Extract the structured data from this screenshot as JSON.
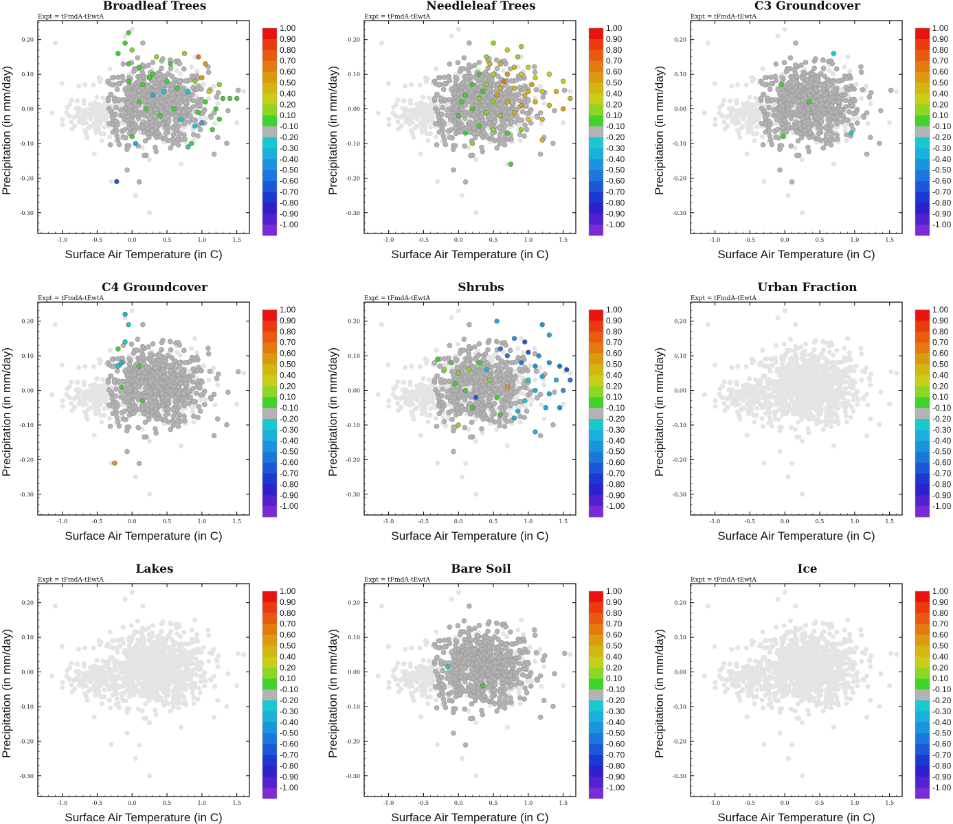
{
  "figure": {
    "expt_label": "Expt = tFmdA-tEwtA",
    "xlabel": "Surface Air Temperature (in C)",
    "ylabel": "Precipitation (in mm/day)"
  },
  "colorbar": {
    "labels": [
      "1.00",
      "0.90",
      "0.80",
      "0.70",
      "0.60",
      "0.50",
      "0.40",
      "0.20",
      "0.10",
      "-0.10",
      "-0.20",
      "-0.30",
      "-0.40",
      "-0.50",
      "-0.60",
      "-0.70",
      "-0.80",
      "-0.90",
      "-1.00"
    ],
    "colors": [
      "#e8130f",
      "#ea3a10",
      "#e85a10",
      "#e27a10",
      "#db9a10",
      "#d2b612",
      "#c9cf18",
      "#8ed625",
      "#3fd32b",
      "#b3b3b3",
      "#18c9d0",
      "#1bb0dc",
      "#1b94de",
      "#1b77dc",
      "#1a58d7",
      "#1b39d0",
      "#2f20cc",
      "#5221d0",
      "#7b2bd6"
    ]
  },
  "chart_data": [
    {
      "type": "scatter",
      "title": "Broadleaf Trees",
      "xlim": [
        -1.35,
        1.68
      ],
      "ylim": [
        -0.36,
        0.255
      ],
      "xticks": [
        -1.0,
        -0.5,
        0.0,
        0.5,
        1.0,
        1.5
      ],
      "xtick_labels": [
        "-1.0",
        "-0.5",
        "0.0",
        "0.5",
        "1.0",
        "1.5"
      ],
      "yticks": [
        0.2,
        0.1,
        0.0,
        -0.1,
        -0.2,
        -0.3
      ],
      "ytick_labels": [
        "0.20",
        "0.10",
        "0.00",
        "-0.10",
        "-0.20",
        "-0.30"
      ],
      "points": [
        [
          -0.05,
          0.22,
          0.15
        ],
        [
          -0.1,
          0.19,
          0.15
        ],
        [
          -0.2,
          0.16,
          0.15
        ],
        [
          0.0,
          0.17,
          0.2
        ],
        [
          -0.05,
          0.13,
          0.15
        ],
        [
          0.1,
          0.12,
          0.15
        ],
        [
          0.25,
          0.09,
          0.15
        ],
        [
          0.35,
          0.15,
          0.2
        ],
        [
          0.5,
          0.08,
          0.15
        ],
        [
          0.55,
          0.13,
          0.15
        ],
        [
          0.75,
          0.16,
          0.2
        ],
        [
          0.95,
          0.15,
          0.7
        ],
        [
          1.05,
          0.13,
          0.6
        ],
        [
          1.0,
          0.09,
          0.6
        ],
        [
          1.1,
          0.05,
          0.4
        ],
        [
          1.05,
          0.02,
          0.15
        ],
        [
          0.95,
          -0.01,
          0.15
        ],
        [
          1.2,
          0.0,
          0.15
        ],
        [
          1.3,
          0.03,
          0.15
        ],
        [
          1.25,
          -0.03,
          0.15
        ],
        [
          1.4,
          0.03,
          0.15
        ],
        [
          1.5,
          0.03,
          0.15
        ],
        [
          0.9,
          0.08,
          0.2
        ],
        [
          0.8,
          0.05,
          -0.25
        ],
        [
          0.6,
          0.0,
          0.15
        ],
        [
          0.45,
          0.05,
          -0.25
        ],
        [
          0.3,
          0.04,
          -0.3
        ],
        [
          0.2,
          0.0,
          0.15
        ],
        [
          0.1,
          0.02,
          0.15
        ],
        [
          -0.05,
          0.08,
          0.15
        ],
        [
          0.0,
          -0.08,
          0.15
        ],
        [
          0.05,
          -0.1,
          -0.3
        ],
        [
          0.9,
          -0.05,
          -0.25
        ],
        [
          0.85,
          -0.1,
          0.15
        ],
        [
          0.8,
          -0.11,
          -0.25
        ],
        [
          1.15,
          -0.06,
          0.15
        ],
        [
          1.0,
          -0.04,
          -0.3
        ],
        [
          0.7,
          -0.03,
          -0.2
        ],
        [
          -0.22,
          -0.21,
          -0.6
        ],
        [
          0.3,
          0.1,
          0.15
        ],
        [
          0.15,
          0.07,
          0.15
        ],
        [
          0.65,
          0.06,
          0.15
        ],
        [
          1.25,
          0.07,
          0.2
        ],
        [
          0.4,
          -0.02,
          0.15
        ]
      ]
    },
    {
      "type": "scatter",
      "title": "Needleleaf Trees",
      "xlim": [
        -1.35,
        1.68
      ],
      "ylim": [
        -0.36,
        0.255
      ],
      "xticks": [
        -1.0,
        -0.5,
        0.0,
        0.5,
        1.0,
        1.5
      ],
      "xtick_labels": [
        "-1.0",
        "-0.5",
        "0.0",
        "0.5",
        "1.0",
        "1.5"
      ],
      "yticks": [
        0.2,
        0.1,
        0.0,
        -0.1,
        -0.2,
        -0.3
      ],
      "ytick_labels": [
        "0.20",
        "0.10",
        "0.00",
        "-0.10",
        "-0.20",
        "-0.30"
      ],
      "points": [
        [
          0.5,
          0.19,
          0.3
        ],
        [
          0.7,
          0.17,
          0.4
        ],
        [
          0.9,
          0.18,
          0.3
        ],
        [
          0.4,
          0.15,
          0.2
        ],
        [
          0.6,
          0.13,
          0.45
        ],
        [
          0.8,
          0.12,
          0.5
        ],
        [
          1.0,
          0.12,
          0.4
        ],
        [
          0.3,
          0.1,
          0.15
        ],
        [
          0.5,
          0.1,
          0.4
        ],
        [
          0.7,
          0.1,
          0.6
        ],
        [
          0.9,
          0.1,
          0.4
        ],
        [
          1.1,
          0.09,
          0.4
        ],
        [
          1.3,
          0.1,
          0.4
        ],
        [
          1.5,
          0.08,
          0.4
        ],
        [
          0.2,
          0.07,
          0.15
        ],
        [
          0.4,
          0.07,
          0.3
        ],
        [
          0.6,
          0.06,
          0.5
        ],
        [
          0.8,
          0.06,
          0.5
        ],
        [
          1.0,
          0.05,
          0.45
        ],
        [
          1.2,
          0.05,
          0.4
        ],
        [
          1.4,
          0.05,
          0.45
        ],
        [
          1.6,
          0.03,
          0.5
        ],
        [
          0.1,
          0.04,
          0.15
        ],
        [
          0.3,
          0.03,
          0.2
        ],
        [
          0.5,
          0.02,
          0.3
        ],
        [
          0.7,
          0.02,
          0.5
        ],
        [
          0.9,
          0.01,
          0.6
        ],
        [
          1.1,
          0.02,
          0.45
        ],
        [
          1.3,
          0.01,
          0.5
        ],
        [
          1.5,
          0.0,
          0.55
        ],
        [
          0.2,
          0.0,
          0.15
        ],
        [
          0.4,
          -0.01,
          0.2
        ],
        [
          0.6,
          -0.02,
          0.3
        ],
        [
          0.8,
          -0.01,
          0.5
        ],
        [
          1.0,
          -0.03,
          0.4
        ],
        [
          1.2,
          -0.03,
          0.5
        ],
        [
          0.3,
          -0.05,
          0.15
        ],
        [
          0.5,
          -0.06,
          0.2
        ],
        [
          0.7,
          -0.07,
          0.15
        ],
        [
          0.9,
          -0.06,
          0.3
        ],
        [
          1.2,
          -0.09,
          0.5
        ],
        [
          0.1,
          -0.07,
          0.15
        ],
        [
          0.2,
          -0.1,
          0.2
        ],
        [
          0.75,
          -0.16,
          0.15
        ],
        [
          0.0,
          -0.02,
          0.15
        ],
        [
          0.05,
          0.02,
          0.15
        ],
        [
          0.45,
          0.13,
          0.45
        ],
        [
          0.85,
          0.15,
          0.35
        ],
        [
          0.65,
          0.08,
          0.7
        ],
        [
          1.05,
          0.07,
          0.55
        ],
        [
          0.35,
          0.05,
          0.15
        ],
        [
          0.55,
          0.04,
          0.6
        ],
        [
          0.95,
          0.04,
          0.5
        ]
      ]
    },
    {
      "type": "scatter",
      "title": "C3 Groundcover",
      "xlim": [
        -1.35,
        1.68
      ],
      "ylim": [
        -0.36,
        0.255
      ],
      "xticks": [
        -1.0,
        -0.5,
        0.0,
        0.5,
        1.0,
        1.5
      ],
      "xtick_labels": [
        "-1.0",
        "-0.5",
        "0.0",
        "0.5",
        "1.0",
        "1.5"
      ],
      "yticks": [
        0.2,
        0.1,
        0.0,
        -0.1,
        -0.2,
        -0.3
      ],
      "ytick_labels": [
        "0.20",
        "0.10",
        "0.00",
        "-0.10",
        "-0.20",
        "-0.30"
      ],
      "points": [
        [
          -0.05,
          0.07,
          0.15
        ],
        [
          0.35,
          0.02,
          0.15
        ],
        [
          0.7,
          0.16,
          -0.2
        ],
        [
          0.95,
          -0.07,
          -0.2
        ],
        [
          -0.02,
          -0.08,
          0.15
        ]
      ]
    },
    {
      "type": "scatter",
      "title": "C4 Groundcover",
      "xlim": [
        -1.35,
        1.68
      ],
      "ylim": [
        -0.36,
        0.255
      ],
      "xticks": [
        -1.0,
        -0.5,
        0.0,
        0.5,
        1.0,
        1.5
      ],
      "xtick_labels": [
        "-1.0",
        "-0.5",
        "0.0",
        "0.5",
        "1.0",
        "1.5"
      ],
      "yticks": [
        0.2,
        0.1,
        0.0,
        -0.1,
        -0.2,
        -0.3
      ],
      "ytick_labels": [
        "0.20",
        "0.10",
        "0.00",
        "-0.10",
        "-0.20",
        "-0.30"
      ],
      "points": [
        [
          -0.1,
          0.22,
          -0.3
        ],
        [
          -0.05,
          0.19,
          -0.2
        ],
        [
          -0.2,
          0.12,
          0.15
        ],
        [
          -0.15,
          0.08,
          -0.3
        ],
        [
          -0.2,
          0.07,
          -0.2
        ],
        [
          0.1,
          0.07,
          0.15
        ],
        [
          -0.15,
          0.01,
          0.15
        ],
        [
          0.15,
          -0.03,
          0.15
        ],
        [
          -0.1,
          0.14,
          -0.2
        ],
        [
          -0.25,
          -0.21,
          0.55
        ]
      ]
    },
    {
      "type": "scatter",
      "title": "Shrubs",
      "xlim": [
        -1.35,
        1.68
      ],
      "ylim": [
        -0.36,
        0.255
      ],
      "xticks": [
        -1.0,
        -0.5,
        0.0,
        0.5,
        1.0,
        1.5
      ],
      "xtick_labels": [
        "-1.0",
        "-0.5",
        "0.0",
        "0.5",
        "1.0",
        "1.5"
      ],
      "yticks": [
        0.2,
        0.1,
        0.0,
        -0.1,
        -0.2,
        -0.3
      ],
      "ytick_labels": [
        "0.20",
        "0.10",
        "0.00",
        "-0.10",
        "-0.20",
        "-0.30"
      ],
      "points": [
        [
          0.55,
          0.2,
          -0.35
        ],
        [
          0.8,
          0.15,
          -0.4
        ],
        [
          0.95,
          0.14,
          -0.6
        ],
        [
          1.2,
          0.19,
          -0.4
        ],
        [
          1.3,
          0.16,
          -0.3
        ],
        [
          1.0,
          0.11,
          -0.6
        ],
        [
          1.15,
          0.1,
          -0.45
        ],
        [
          0.6,
          0.12,
          -0.5
        ],
        [
          0.7,
          0.1,
          -0.55
        ],
        [
          0.9,
          0.08,
          -0.5
        ],
        [
          1.1,
          0.07,
          -0.4
        ],
        [
          1.3,
          0.08,
          -0.45
        ],
        [
          1.45,
          0.07,
          -0.5
        ],
        [
          1.55,
          0.06,
          -0.6
        ],
        [
          1.6,
          0.03,
          -0.5
        ],
        [
          1.4,
          0.03,
          -0.35
        ],
        [
          1.2,
          0.04,
          -0.3
        ],
        [
          1.0,
          0.03,
          -0.25
        ],
        [
          1.1,
          0.0,
          -0.3
        ],
        [
          1.3,
          -0.01,
          -0.35
        ],
        [
          1.5,
          0.0,
          -0.4
        ],
        [
          1.25,
          -0.05,
          -0.3
        ],
        [
          1.45,
          -0.05,
          -0.45
        ],
        [
          0.95,
          -0.03,
          -0.25
        ],
        [
          0.85,
          -0.06,
          -0.3
        ],
        [
          0.3,
          0.08,
          0.15
        ],
        [
          0.15,
          0.06,
          0.2
        ],
        [
          0.0,
          0.05,
          0.3
        ],
        [
          -0.1,
          0.08,
          0.15
        ],
        [
          -0.2,
          0.06,
          0.2
        ],
        [
          0.1,
          0.0,
          0.15
        ],
        [
          -0.05,
          0.02,
          0.15
        ],
        [
          0.45,
          0.03,
          0.2
        ],
        [
          0.7,
          0.01,
          0.6
        ],
        [
          0.55,
          -0.02,
          0.15
        ],
        [
          0.0,
          -0.1,
          0.2
        ],
        [
          0.2,
          -0.05,
          0.15
        ],
        [
          0.6,
          -0.07,
          0.15
        ],
        [
          0.8,
          -0.08,
          -0.3
        ],
        [
          1.1,
          -0.12,
          -0.35
        ],
        [
          0.25,
          -0.02,
          -0.6
        ],
        [
          -0.3,
          0.09,
          0.15
        ],
        [
          0.4,
          0.06,
          -0.3
        ]
      ]
    },
    {
      "type": "scatter",
      "title": "Urban Fraction",
      "xlim": [
        -1.35,
        1.68
      ],
      "ylim": [
        -0.36,
        0.255
      ],
      "xticks": [
        -1.0,
        -0.5,
        0.0,
        0.5,
        1.0,
        1.5
      ],
      "xtick_labels": [
        "-1.0",
        "-0.5",
        "0.0",
        "0.5",
        "1.0",
        "1.5"
      ],
      "yticks": [
        0.2,
        0.1,
        0.0,
        -0.1,
        -0.2,
        -0.3
      ],
      "ytick_labels": [
        "0.20",
        "0.10",
        "0.00",
        "-0.10",
        "-0.20",
        "-0.30"
      ],
      "points": []
    },
    {
      "type": "scatter",
      "title": "Lakes",
      "xlim": [
        -1.35,
        1.68
      ],
      "ylim": [
        -0.36,
        0.255
      ],
      "xticks": [
        -1.0,
        -0.5,
        0.0,
        0.5,
        1.0,
        1.5
      ],
      "xtick_labels": [
        "-1.0",
        "-0.5",
        "0.0",
        "0.5",
        "1.0",
        "1.5"
      ],
      "yticks": [
        0.2,
        0.1,
        0.0,
        -0.1,
        -0.2,
        -0.3
      ],
      "ytick_labels": [
        "0.20",
        "0.10",
        "0.00",
        "-0.10",
        "-0.20",
        "-0.30"
      ],
      "points": []
    },
    {
      "type": "scatter",
      "title": "Bare Soil",
      "xlim": [
        -1.35,
        1.68
      ],
      "ylim": [
        -0.36,
        0.255
      ],
      "xticks": [
        -1.0,
        -0.5,
        0.0,
        0.5,
        1.0,
        1.5
      ],
      "xtick_labels": [
        "-1.0",
        "-0.5",
        "0.0",
        "0.5",
        "1.0",
        "1.5"
      ],
      "yticks": [
        0.2,
        0.1,
        0.0,
        -0.1,
        -0.2,
        -0.3
      ],
      "ytick_labels": [
        "0.20",
        "0.10",
        "0.00",
        "-0.10",
        "-0.20",
        "-0.30"
      ],
      "points": [
        [
          0.35,
          -0.04,
          0.15
        ],
        [
          -0.15,
          0.015,
          -0.2
        ]
      ]
    },
    {
      "type": "scatter",
      "title": "Ice",
      "xlim": [
        -1.35,
        1.68
      ],
      "ylim": [
        -0.36,
        0.255
      ],
      "xticks": [
        -1.0,
        -0.5,
        0.0,
        0.5,
        1.0,
        1.5
      ],
      "xtick_labels": [
        "-1.0",
        "-0.5",
        "0.0",
        "0.5",
        "1.0",
        "1.5"
      ],
      "yticks": [
        0.2,
        0.1,
        0.0,
        -0.1,
        -0.2,
        -0.3
      ],
      "ytick_labels": [
        "0.20",
        "0.10",
        "0.00",
        "-0.10",
        "-0.20",
        "-0.30"
      ],
      "points": []
    }
  ]
}
